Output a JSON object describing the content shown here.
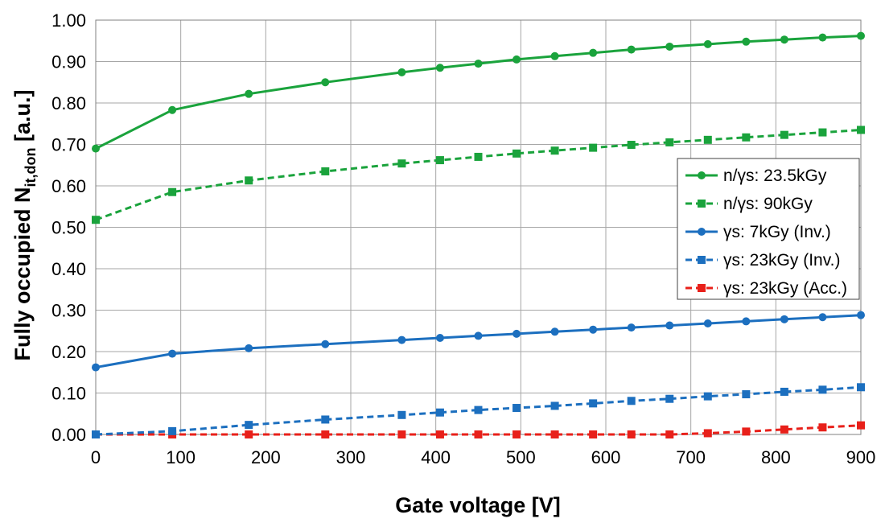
{
  "chart_data": {
    "type": "line",
    "title": "",
    "xlabel": "Gate voltage [V]",
    "ylabel": {
      "prefix": "Fully occupied N",
      "subscript": "it,don",
      "suffix": " [a.u.]"
    },
    "xlim": [
      0,
      900
    ],
    "ylim": [
      0,
      1.0
    ],
    "xticks": [
      0,
      100,
      200,
      300,
      400,
      500,
      600,
      700,
      800,
      900
    ],
    "xtick_labels": [
      "0",
      "100",
      "200",
      "300",
      "400",
      "500",
      "600",
      "700",
      "800",
      "900"
    ],
    "yticks": [
      0,
      0.1,
      0.2,
      0.3,
      0.4,
      0.5,
      0.6,
      0.7,
      0.8,
      0.9,
      1.0
    ],
    "ytick_labels": [
      "0.00",
      "0.10",
      "0.20",
      "0.30",
      "0.40",
      "0.50",
      "0.60",
      "0.70",
      "0.80",
      "0.90",
      "1.00"
    ],
    "grid": true,
    "legend_position": "right",
    "x": [
      0,
      90,
      180,
      270,
      360,
      405,
      450,
      495,
      540,
      585,
      630,
      675,
      720,
      765,
      810,
      855,
      900
    ],
    "series": [
      {
        "name": "n/γs: 23.5kGy",
        "color": "#1aa33c",
        "dash": "solid",
        "marker": "circle",
        "values": [
          0.69,
          0.783,
          0.822,
          0.85,
          0.874,
          0.885,
          0.895,
          0.905,
          0.913,
          0.921,
          0.929,
          0.936,
          0.942,
          0.948,
          0.953,
          0.958,
          0.962
        ]
      },
      {
        "name": "n/γs: 90kGy",
        "color": "#1aa33c",
        "dash": "dashed",
        "marker": "square",
        "values": [
          0.518,
          0.585,
          0.613,
          0.635,
          0.654,
          0.662,
          0.67,
          0.678,
          0.685,
          0.692,
          0.699,
          0.705,
          0.711,
          0.717,
          0.723,
          0.729,
          0.735
        ]
      },
      {
        "name": "γs: 7kGy (Inv.)",
        "color": "#1c6fbf",
        "dash": "solid",
        "marker": "circle",
        "values": [
          0.162,
          0.195,
          0.208,
          0.218,
          0.228,
          0.233,
          0.238,
          0.243,
          0.248,
          0.253,
          0.258,
          0.263,
          0.268,
          0.273,
          0.278,
          0.283,
          0.288
        ]
      },
      {
        "name": "γs: 23kGy (Inv.)",
        "color": "#1c6fbf",
        "dash": "dashed",
        "marker": "square",
        "values": [
          0.0,
          0.008,
          0.023,
          0.036,
          0.047,
          0.053,
          0.059,
          0.064,
          0.069,
          0.075,
          0.081,
          0.086,
          0.092,
          0.097,
          0.103,
          0.108,
          0.114
        ]
      },
      {
        "name": "γs: 23kGy (Acc.)",
        "color": "#e8201a",
        "dash": "dashed",
        "marker": "square",
        "values": [
          0.0,
          0.0,
          0.0,
          0.0,
          0.0,
          0.0,
          0.0,
          0.0,
          0.0,
          0.0,
          0.0,
          0.0,
          0.003,
          0.007,
          0.012,
          0.017,
          0.022
        ]
      }
    ]
  }
}
